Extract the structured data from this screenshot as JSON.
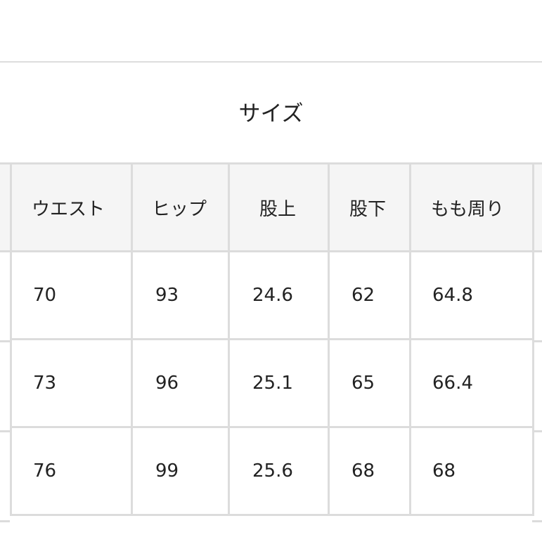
{
  "title": "サイズ",
  "table": {
    "headers": [
      "ウエスト",
      "ヒップ",
      "股上",
      "股下",
      "もも周り"
    ],
    "rows": [
      [
        "70",
        "93",
        "24.6",
        "62",
        "64.8"
      ],
      [
        "73",
        "96",
        "25.1",
        "65",
        "66.4"
      ],
      [
        "76",
        "99",
        "25.6",
        "68",
        "68"
      ]
    ]
  }
}
